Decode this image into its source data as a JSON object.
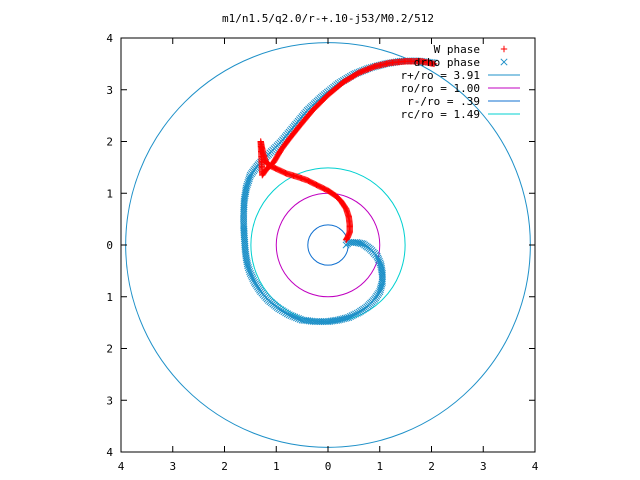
{
  "chart_data": {
    "type": "scatter",
    "title": "m1/n1.5/q2.0/r-+.10-j53/M0.2/512",
    "xlim": [
      -4,
      4
    ],
    "ylim": [
      -4,
      4
    ],
    "x_ticks": [
      -4,
      -3,
      -2,
      -1,
      0,
      1,
      2,
      3,
      4
    ],
    "y_ticks": [
      -4,
      -3,
      -2,
      -1,
      0,
      1,
      2,
      3,
      4
    ],
    "x_tick_labels": [
      "4",
      "3",
      "2",
      "1",
      "0",
      "1",
      "2",
      "3",
      "4"
    ],
    "y_tick_labels": [
      "4",
      "3",
      "2",
      "1",
      "0",
      "1",
      "2",
      "3",
      "4"
    ],
    "grid": false,
    "legend_position": "top-right",
    "series": [
      {
        "name": "W phase",
        "marker": "+",
        "color": "#ff0000",
        "points": [
          [
            2.05,
            3.5
          ],
          [
            1.8,
            3.55
          ],
          [
            1.5,
            3.55
          ],
          [
            1.2,
            3.52
          ],
          [
            0.9,
            3.45
          ],
          [
            0.6,
            3.33
          ],
          [
            0.3,
            3.15
          ],
          [
            0.0,
            2.9
          ],
          [
            -0.3,
            2.6
          ],
          [
            -0.55,
            2.3
          ],
          [
            -0.75,
            2.05
          ],
          [
            -0.9,
            1.85
          ],
          [
            -1.05,
            1.6
          ],
          [
            -1.2,
            1.45
          ],
          [
            -1.27,
            1.35
          ],
          [
            -1.3,
            2.0
          ],
          [
            -1.25,
            1.75
          ],
          [
            -1.2,
            1.6
          ],
          [
            -1.1,
            1.52
          ],
          [
            -0.95,
            1.45
          ],
          [
            -0.8,
            1.38
          ],
          [
            -0.6,
            1.32
          ],
          [
            -0.4,
            1.25
          ],
          [
            -0.2,
            1.15
          ],
          [
            0.0,
            1.05
          ],
          [
            0.15,
            0.95
          ],
          [
            0.25,
            0.85
          ],
          [
            0.35,
            0.7
          ],
          [
            0.4,
            0.55
          ],
          [
            0.42,
            0.4
          ],
          [
            0.42,
            0.25
          ],
          [
            0.38,
            0.15
          ],
          [
            0.35,
            0.1
          ]
        ]
      },
      {
        "name": "drho phase",
        "marker": "x",
        "color": "#1e90c8",
        "points": [
          [
            2.05,
            3.52
          ],
          [
            1.7,
            3.56
          ],
          [
            1.4,
            3.55
          ],
          [
            1.1,
            3.5
          ],
          [
            0.8,
            3.42
          ],
          [
            0.5,
            3.3
          ],
          [
            0.2,
            3.12
          ],
          [
            -0.1,
            2.88
          ],
          [
            -0.4,
            2.6
          ],
          [
            -0.65,
            2.3
          ],
          [
            -0.9,
            2.0
          ],
          [
            -1.15,
            1.75
          ],
          [
            -1.35,
            1.55
          ],
          [
            -1.5,
            1.35
          ],
          [
            -1.58,
            1.1
          ],
          [
            -1.62,
            0.85
          ],
          [
            -1.63,
            0.6
          ],
          [
            -1.63,
            0.4
          ],
          [
            -1.62,
            0.2
          ],
          [
            -1.61,
            0.05
          ],
          [
            -1.6,
            -0.1
          ],
          [
            -1.58,
            -0.25
          ],
          [
            -1.55,
            -0.4
          ],
          [
            -1.5,
            -0.55
          ],
          [
            -1.42,
            -0.72
          ],
          [
            -1.3,
            -0.9
          ],
          [
            -1.15,
            -1.07
          ],
          [
            -0.95,
            -1.23
          ],
          [
            -0.75,
            -1.35
          ],
          [
            -0.5,
            -1.45
          ],
          [
            -0.25,
            -1.48
          ],
          [
            0.0,
            -1.48
          ],
          [
            0.2,
            -1.45
          ],
          [
            0.4,
            -1.4
          ],
          [
            0.6,
            -1.3
          ],
          [
            0.75,
            -1.2
          ],
          [
            0.9,
            -1.05
          ],
          [
            1.0,
            -0.9
          ],
          [
            1.05,
            -0.72
          ],
          [
            1.05,
            -0.55
          ],
          [
            1.02,
            -0.38
          ],
          [
            0.95,
            -0.22
          ],
          [
            0.82,
            -0.08
          ],
          [
            0.68,
            0.02
          ],
          [
            0.55,
            0.05
          ],
          [
            0.4,
            0.05
          ],
          [
            0.35,
            0.0
          ]
        ]
      },
      {
        "name": "r+/ro = 3.91",
        "type": "circle",
        "radius": 3.91,
        "color": "#1e90c8"
      },
      {
        "name": "ro/ro = 1.00",
        "type": "circle",
        "radius": 1.0,
        "color": "#c000c0"
      },
      {
        "name": "r-/ro = .39",
        "type": "circle",
        "radius": 0.39,
        "color": "#1070d0"
      },
      {
        "name": "rc/ro = 1.49",
        "type": "circle",
        "radius": 1.49,
        "color": "#00d0d0"
      }
    ]
  }
}
